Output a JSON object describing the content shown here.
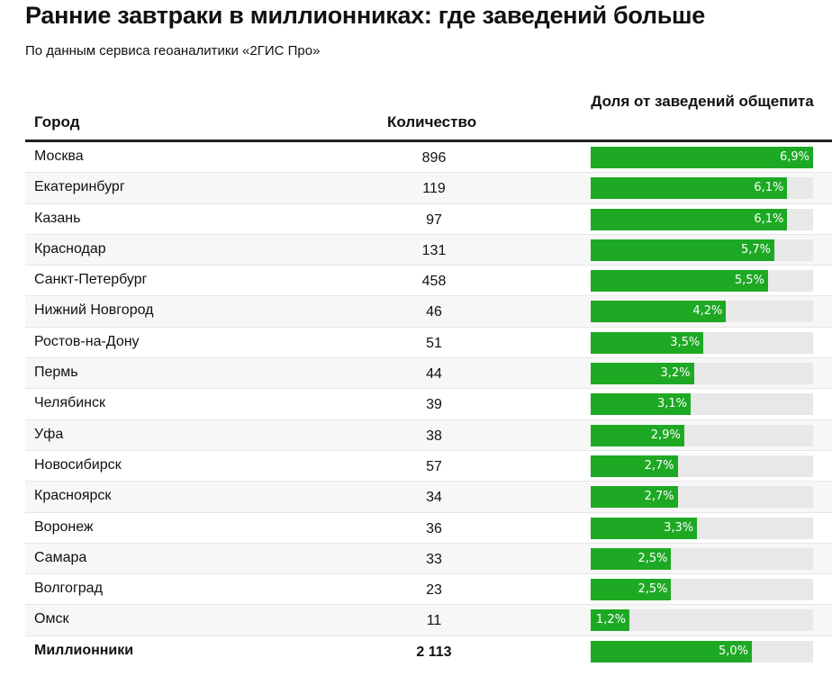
{
  "title": "Ранние завтраки в миллионниках: где заведений больше",
  "subtitle": "По данным сервиса геоаналитики «2ГИС Про»",
  "chart_data": {
    "type": "table",
    "columns": [
      "Город",
      "Количество",
      "Доля от заведений общепита"
    ],
    "max_share": 6.9,
    "bar_color": "#1ea924",
    "track_color": "#e8e8e8",
    "rows": [
      {
        "city": "Москва",
        "count": "896",
        "share": 6.9,
        "label": "6,9%"
      },
      {
        "city": "Екатеринбург",
        "count": "119",
        "share": 6.1,
        "label": "6,1%"
      },
      {
        "city": "Казань",
        "count": "97",
        "share": 6.1,
        "label": "6,1%"
      },
      {
        "city": "Краснодар",
        "count": "131",
        "share": 5.7,
        "label": "5,7%"
      },
      {
        "city": "Санкт-Петербург",
        "count": "458",
        "share": 5.5,
        "label": "5,5%"
      },
      {
        "city": "Нижний Новгород",
        "count": "46",
        "share": 4.2,
        "label": "4,2%"
      },
      {
        "city": "Ростов-на-Дону",
        "count": "51",
        "share": 3.5,
        "label": "3,5%"
      },
      {
        "city": "Пермь",
        "count": "44",
        "share": 3.2,
        "label": "3,2%"
      },
      {
        "city": "Челябинск",
        "count": "39",
        "share": 3.1,
        "label": "3,1%"
      },
      {
        "city": "Уфа",
        "count": "38",
        "share": 2.9,
        "label": "2,9%"
      },
      {
        "city": "Новосибирск",
        "count": "57",
        "share": 2.7,
        "label": "2,7%"
      },
      {
        "city": "Красноярск",
        "count": "34",
        "share": 2.7,
        "label": "2,7%"
      },
      {
        "city": "Воронеж",
        "count": "36",
        "share": 3.3,
        "label": "3,3%"
      },
      {
        "city": "Самара",
        "count": "33",
        "share": 2.5,
        "label": "2,5%"
      },
      {
        "city": "Волгоград",
        "count": "23",
        "share": 2.5,
        "label": "2,5%"
      },
      {
        "city": "Омск",
        "count": "11",
        "share": 1.2,
        "label": "1,2%"
      }
    ],
    "total": {
      "city": "Миллионники",
      "count": "2 113",
      "share": 5.0,
      "label": "5,0%"
    }
  }
}
